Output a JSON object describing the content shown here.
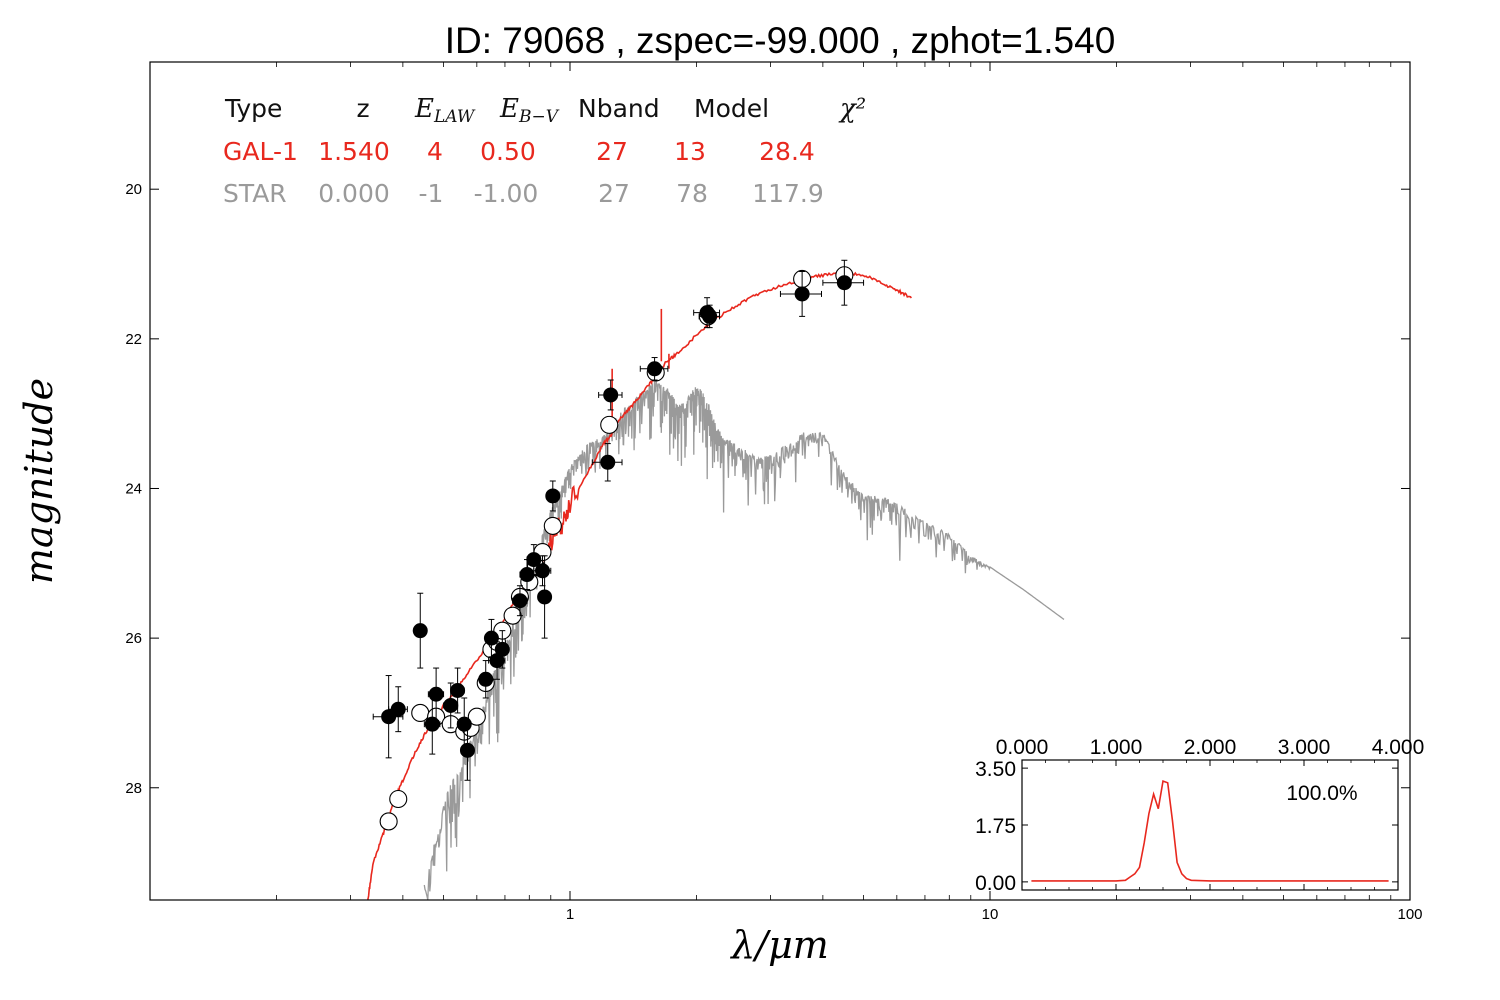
{
  "title": "ID:  79068 , zspec=-99.000 , zphot=1.540",
  "colors": {
    "galaxy": "#e8281e",
    "star": "#9a9a9a",
    "observed": "#000000"
  },
  "table": {
    "headers": [
      "Type",
      "z",
      "E_LAW",
      "E_B-V",
      "Nband",
      "Model",
      "χ²"
    ],
    "rows": [
      {
        "name": "galaxy",
        "cells": [
          "GAL-1",
          "1.540",
          "4",
          "0.50",
          "27",
          "13",
          "28.4"
        ]
      },
      {
        "name": "star",
        "cells": [
          "STAR",
          "0.000",
          "-1",
          "-1.00",
          "27",
          "78",
          "117.9"
        ]
      }
    ]
  },
  "chart_data": [
    {
      "type": "line",
      "x_scale": "log",
      "y_scale": "linear",
      "xlabel": "λ/μm",
      "ylabel": "magnitude",
      "xlim": [
        0.1,
        100
      ],
      "ylim": [
        29.5,
        18.3
      ],
      "x_ticks": [
        1,
        10,
        100
      ],
      "x_tick_labels": [
        "1",
        "10",
        "100"
      ],
      "y_ticks": [
        20,
        22,
        24,
        26,
        28
      ],
      "y_tick_labels": [
        "20",
        "22",
        "24",
        "26",
        "28"
      ],
      "grid": false,
      "series": [
        {
          "kind": "model-galaxy",
          "x": [
            0.33,
            0.34,
            0.36,
            0.38,
            0.4,
            0.43,
            0.46,
            0.5,
            0.55,
            0.6,
            0.66,
            0.72,
            0.8,
            0.88,
            0.95,
            1.0,
            1.1,
            1.2,
            1.25,
            1.3,
            1.4,
            1.5,
            1.6,
            1.7,
            1.8,
            2.0,
            2.2,
            2.5,
            2.8,
            3.2,
            3.6,
            4.0,
            4.5,
            5.0,
            5.5,
            6.0,
            6.5
          ],
          "y": [
            29.5,
            29.0,
            28.6,
            28.2,
            27.9,
            27.5,
            27.2,
            26.9,
            26.6,
            26.3,
            26.0,
            25.6,
            25.2,
            24.8,
            24.5,
            24.2,
            23.8,
            23.4,
            23.3,
            23.1,
            22.9,
            22.7,
            22.5,
            22.3,
            22.2,
            21.95,
            21.75,
            21.55,
            21.4,
            21.28,
            21.2,
            21.15,
            21.12,
            21.15,
            21.25,
            21.35,
            21.45
          ],
          "spikes": [
            [
              1.26,
              22.4
            ],
            [
              1.65,
              21.6
            ],
            [
              1.72,
              22.4
            ]
          ]
        },
        {
          "kind": "model-star",
          "x": [
            0.45,
            0.5,
            0.55,
            0.6,
            0.65,
            0.7,
            0.75,
            0.8,
            0.85,
            0.9,
            0.95,
            1.0,
            1.1,
            1.2,
            1.3,
            1.4,
            1.5,
            1.6,
            1.7,
            1.8,
            1.9,
            2.0,
            2.1,
            2.2,
            2.3,
            2.5,
            2.8,
            3.0,
            3.3,
            3.6,
            4.0,
            4.5,
            5.0,
            5.5,
            6.0,
            7.0,
            8.0,
            9.0,
            10.0,
            12.0,
            15.0
          ],
          "y": [
            29.3,
            28.2,
            27.6,
            27.2,
            26.5,
            26.1,
            25.6,
            25.1,
            24.7,
            24.3,
            24.0,
            23.7,
            23.4,
            23.3,
            23.0,
            22.85,
            22.7,
            22.55,
            22.65,
            22.85,
            22.8,
            22.6,
            22.75,
            23.05,
            23.3,
            23.4,
            23.6,
            23.55,
            23.4,
            23.25,
            23.25,
            23.8,
            24.1,
            24.1,
            24.2,
            24.45,
            24.6,
            24.9,
            25.05,
            25.35,
            25.75
          ],
          "noise": [
            [
              0.45,
              1.6
            ],
            [
              0.6,
              1.3
            ],
            [
              0.8,
              1.0
            ],
            [
              1.0,
              0.6
            ],
            [
              1.4,
              0.8
            ],
            [
              2.0,
              1.2
            ],
            [
              3.0,
              0.9
            ],
            [
              4.0,
              0.5
            ],
            [
              6.0,
              0.8
            ],
            [
              9.0,
              0.4
            ],
            [
              10.0,
              0.1
            ]
          ]
        },
        {
          "kind": "observed",
          "name": "observed",
          "x": [
            0.37,
            0.39,
            0.44,
            0.47,
            0.48,
            0.52,
            0.54,
            0.56,
            0.57,
            0.63,
            0.65,
            0.67,
            0.69,
            0.76,
            0.79,
            0.82,
            0.86,
            0.87,
            0.91,
            1.23,
            1.25,
            1.59,
            2.12,
            2.15,
            3.57,
            4.5
          ],
          "y": [
            27.05,
            26.95,
            25.9,
            27.15,
            26.75,
            26.9,
            26.7,
            27.15,
            27.5,
            26.55,
            26.0,
            26.3,
            26.15,
            25.5,
            25.15,
            24.95,
            25.1,
            25.45,
            24.1,
            23.65,
            22.75,
            22.4,
            21.65,
            21.7,
            21.4,
            21.25
          ],
          "yerr": [
            0.55,
            0.3,
            0.5,
            0.4,
            0.35,
            0.3,
            0.3,
            0.35,
            0.4,
            0.25,
            0.25,
            0.25,
            0.25,
            0.2,
            0.2,
            0.2,
            0.2,
            0.55,
            0.2,
            0.25,
            0.2,
            0.15,
            0.2,
            0.15,
            0.3,
            0.3
          ],
          "xerr": [
            0.03,
            0.02,
            0.01,
            0.02,
            0.02,
            0.02,
            0.02,
            0.02,
            0.02,
            0.02,
            0.02,
            0.03,
            0.02,
            0.03,
            0.03,
            0.03,
            0.04,
            0.03,
            0.03,
            0.1,
            0.08,
            0.12,
            0.15,
            0.12,
            0.4,
            0.5
          ]
        },
        {
          "kind": "model-photometry",
          "name": "model-photometry",
          "x": [
            0.37,
            0.39,
            0.44,
            0.48,
            0.52,
            0.56,
            0.58,
            0.6,
            0.63,
            0.65,
            0.67,
            0.69,
            0.73,
            0.76,
            0.8,
            0.83,
            0.86,
            0.91,
            1.24,
            1.6,
            2.13,
            3.57,
            4.5
          ],
          "y": [
            28.45,
            28.15,
            27.0,
            27.05,
            27.15,
            27.25,
            27.2,
            27.05,
            26.6,
            26.15,
            26.05,
            25.9,
            25.7,
            25.45,
            25.25,
            25.05,
            24.85,
            24.5,
            23.15,
            22.45,
            21.7,
            21.2,
            21.15
          ]
        }
      ]
    },
    {
      "type": "line",
      "name": "photometric-redshift-pdf",
      "annotation": "100.0%",
      "xlim": [
        0,
        4
      ],
      "ylim": [
        -0.25,
        3.75
      ],
      "x_ticks": [
        0,
        1,
        2,
        3,
        4
      ],
      "x_tick_labels": [
        "0.000",
        "1.000",
        "2.000",
        "3.000",
        "4.000"
      ],
      "y_ticks": [
        0,
        1.75,
        3.5
      ],
      "y_tick_labels": [
        "0.00",
        "1.75",
        "3.50"
      ],
      "series": [
        {
          "x": [
            0.1,
            0.5,
            1.0,
            1.1,
            1.15,
            1.2,
            1.25,
            1.3,
            1.35,
            1.4,
            1.45,
            1.5,
            1.55,
            1.6,
            1.65,
            1.7,
            1.75,
            1.8,
            2.0,
            2.5,
            3.0,
            3.5,
            3.9
          ],
          "y": [
            0.03,
            0.03,
            0.03,
            0.05,
            0.15,
            0.25,
            0.45,
            1.2,
            2.1,
            2.7,
            2.25,
            3.1,
            3.05,
            1.9,
            0.6,
            0.25,
            0.1,
            0.05,
            0.03,
            0.03,
            0.03,
            0.03,
            0.03
          ]
        }
      ]
    }
  ]
}
